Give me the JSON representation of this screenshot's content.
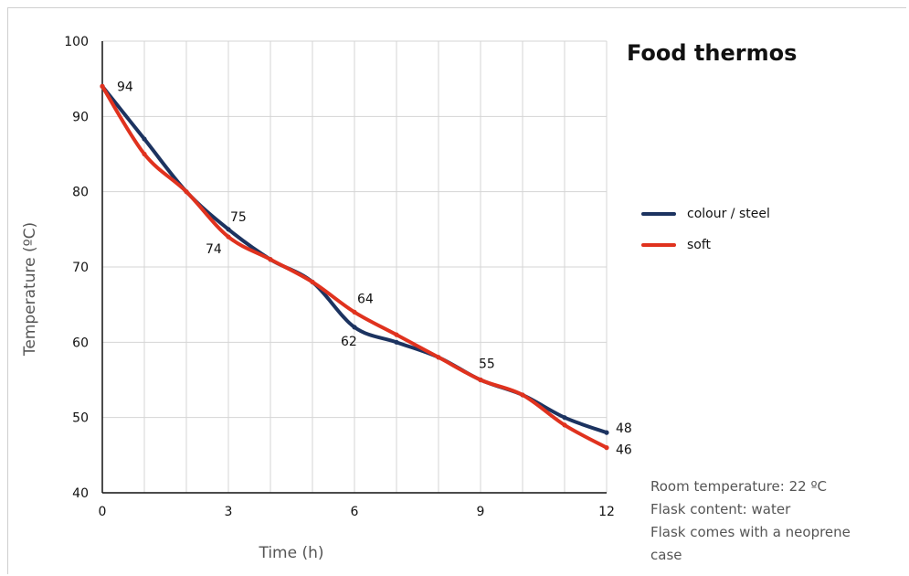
{
  "chart_data": {
    "type": "line",
    "title": "Food thermos",
    "xlabel": "Time (h)",
    "ylabel": "Temperature (ºC)",
    "xlim": [
      0,
      12
    ],
    "ylim": [
      40,
      100
    ],
    "x_ticks": [
      0,
      3,
      6,
      9,
      12
    ],
    "y_ticks": [
      40,
      50,
      60,
      70,
      80,
      90,
      100
    ],
    "grid": true,
    "legend_position": "right",
    "x": [
      0,
      1,
      2,
      3,
      4,
      5,
      6,
      7,
      8,
      9,
      10,
      11,
      12
    ],
    "series": [
      {
        "name": "colour / steel",
        "color": "#1c3360",
        "values": [
          94,
          87,
          80,
          75,
          71,
          68,
          62,
          60,
          58,
          55,
          53,
          50,
          48
        ]
      },
      {
        "name": "soft",
        "color": "#e0321e",
        "values": [
          94,
          85,
          80,
          74,
          71,
          68,
          64,
          61,
          58,
          55,
          53,
          49,
          46
        ]
      }
    ],
    "data_labels": [
      {
        "text": "94",
        "x": 0,
        "y": 94,
        "series": 0
      },
      {
        "text": "75",
        "x": 3,
        "y": 75,
        "series": 0
      },
      {
        "text": "74",
        "x": 3,
        "y": 74,
        "series": 1
      },
      {
        "text": "64",
        "x": 6,
        "y": 64,
        "series": 1
      },
      {
        "text": "62",
        "x": 6,
        "y": 62,
        "series": 0
      },
      {
        "text": "55",
        "x": 9,
        "y": 55,
        "series": 0
      },
      {
        "text": "48",
        "x": 12,
        "y": 48,
        "series": 0
      },
      {
        "text": "46",
        "x": 12,
        "y": 46,
        "series": 1
      }
    ]
  },
  "notes": [
    "Room temperature: 22 ºC",
    "Flask content: water",
    "Flask comes with a neoprene",
    "case"
  ]
}
